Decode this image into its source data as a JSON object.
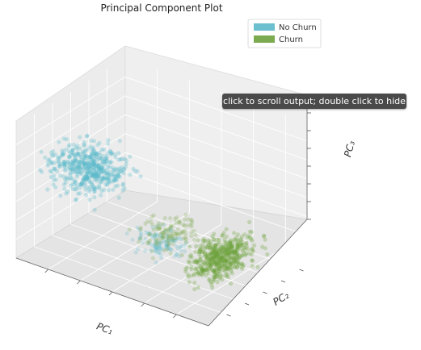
{
  "chart_data": {
    "type": "scatter",
    "dimensions": 3,
    "title": "Principal Component Plot",
    "xlabel": "PC₁",
    "ylabel": "PC₂",
    "zlabel": "PC₃",
    "tick_labels_visible": false,
    "grid": true,
    "legend_position": "top-right",
    "series": [
      {
        "name": "No Churn",
        "color": "#5bb8c9",
        "alpha": 0.3,
        "clusters": [
          {
            "pc1": [
              0.0,
              0.45
            ],
            "pc2": [
              0.0,
              0.55
            ],
            "pc3": [
              0.45,
              0.85
            ]
          },
          {
            "pc1": [
              0.5,
              0.8
            ],
            "pc2": [
              0.0,
              0.35
            ],
            "pc3": [
              0.25,
              0.5
            ]
          }
        ]
      },
      {
        "name": "Churn",
        "color": "#6ea23c",
        "alpha": 0.3,
        "clusters": [
          {
            "pc1": [
              0.75,
              1.0
            ],
            "pc2": [
              0.0,
              0.7
            ],
            "pc3": [
              0.1,
              0.45
            ]
          },
          {
            "pc1": [
              0.5,
              0.8
            ],
            "pc2": [
              0.0,
              0.5
            ],
            "pc3": [
              0.25,
              0.55
            ]
          }
        ]
      }
    ]
  },
  "tooltip": {
    "text": "click to scroll output; double click to hide"
  }
}
